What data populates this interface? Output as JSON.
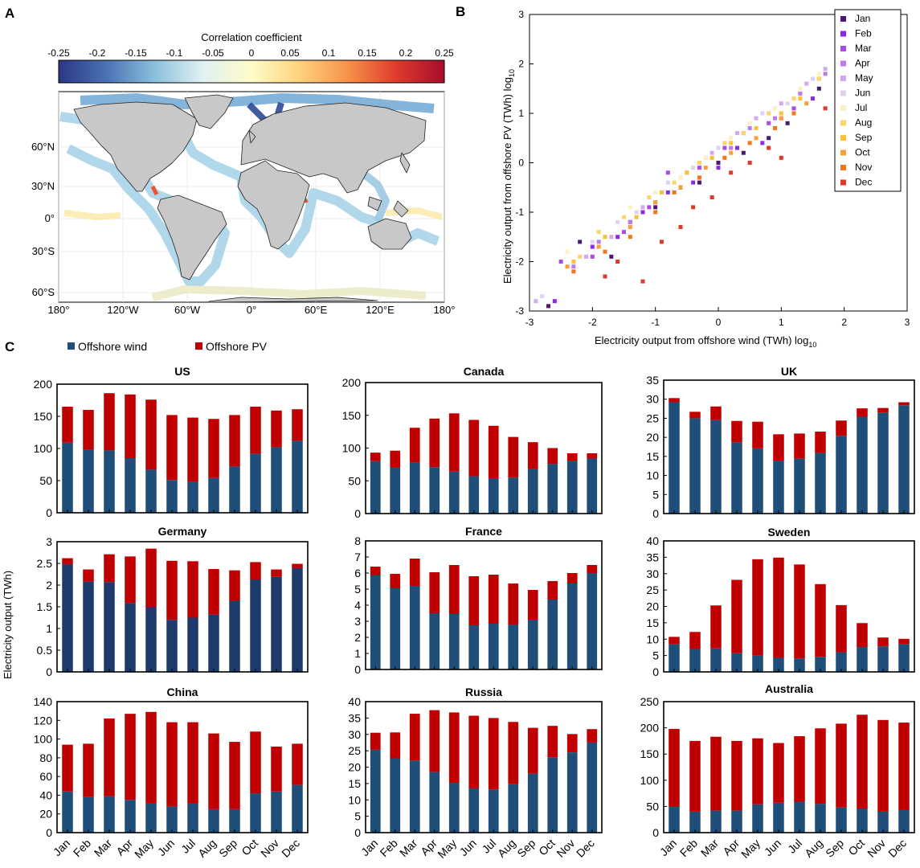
{
  "panels": {
    "a": {
      "letter": "A",
      "colorbar": {
        "title": "Correlation coefficient",
        "ticks": [
          "-0.25",
          "-0.2",
          "-0.15",
          "-0.1",
          "-0.05",
          "0",
          "0.05",
          "0.1",
          "0.15",
          "0.2",
          "0.25"
        ],
        "stops": [
          "#2b3686",
          "#4a73b3",
          "#8dc0dd",
          "#e1f1f3",
          "#fffcc8",
          "#fdd27e",
          "#f7924a",
          "#de3b2c",
          "#a50d2b"
        ]
      },
      "map": {
        "lon_labels": [
          "180°",
          "120°W",
          "60°W",
          "0°",
          "60°E",
          "120°E",
          "180°"
        ],
        "lat_labels": [
          "60°N",
          "30°N",
          "0°",
          "30°S",
          "60°S"
        ],
        "land_color": "#c8c8c8",
        "ocean_coast_color": "#a9d4e8"
      }
    },
    "b": {
      "letter": "B",
      "legend": [
        "Jan",
        "Feb",
        "Mar",
        "Apr",
        "May",
        "Jun",
        "Jul",
        "Aug",
        "Sep",
        "Oct",
        "Nov",
        "Dec"
      ],
      "month_colors": [
        "#4b1a6f",
        "#8a2be2",
        "#a64de6",
        "#c07ae8",
        "#d3a8ee",
        "#e2d2f2",
        "#fbefc4",
        "#fad66a",
        "#f8c13a",
        "#f7a03a",
        "#f3761c",
        "#dd3a2a"
      ],
      "xlabel_main": "Electricity output from offshore wind (TWh) log",
      "xlabel_sub": "10",
      "ylabel_main": "Electricity output from offshore PV (TWh) log",
      "ylabel_sub": "10",
      "ticks": [
        "-3",
        "-2",
        "-1",
        "0",
        "1",
        "2",
        "3"
      ]
    },
    "c": {
      "letter": "C",
      "legend": {
        "wind": "Offshore wind",
        "pv": "Offshore PV"
      },
      "colors": {
        "wind": "#1f4e79",
        "wind_dark": "#1f3b6b",
        "pv": "#c00000"
      },
      "ylabel": "Electricity output (TWh)",
      "months": [
        "Jan",
        "Feb",
        "Mar",
        "Apr",
        "May",
        "Jun",
        "Jul",
        "Aug",
        "Sep",
        "Oct",
        "Nov",
        "Dec"
      ]
    }
  },
  "chart_data": [
    {
      "type": "heatmap",
      "title": "Correlation coefficient",
      "x": "longitude",
      "y": "latitude",
      "xlim": [
        -180,
        180
      ],
      "ylim": [
        -65,
        90
      ],
      "clim": [
        -0.25,
        0.25
      ]
    },
    {
      "type": "scatter",
      "xlim": [
        -3,
        3
      ],
      "ylim": [
        -3,
        3
      ],
      "series": [
        {
          "name": "Jan",
          "x": [
            -2.7,
            -2.2,
            -1.7,
            -1.4,
            -1.0,
            -0.6,
            -0.3,
            0.0,
            0.4,
            0.8,
            1.1,
            1.6
          ],
          "y": [
            -2.9,
            -1.6,
            -1.9,
            -1.2,
            -0.9,
            -0.5,
            -0.4,
            0.0,
            0.2,
            0.5,
            0.8,
            1.5
          ]
        },
        {
          "name": "Feb",
          "x": [
            -2.6,
            -2.0,
            -1.6,
            -1.2,
            -0.8,
            -0.4,
            0.0,
            0.3,
            0.7,
            1.0,
            1.5
          ],
          "y": [
            -2.8,
            -1.7,
            -1.5,
            -1.0,
            -0.6,
            -0.4,
            -0.1,
            0.3,
            0.4,
            0.9,
            1.3
          ]
        },
        {
          "name": "Mar",
          "x": [
            -2.5,
            -2.0,
            -1.5,
            -1.1,
            -0.8,
            -0.3,
            0.1,
            0.4,
            0.8,
            1.2,
            1.6
          ],
          "y": [
            -2.0,
            -1.9,
            -1.4,
            -0.9,
            -0.2,
            -0.1,
            0.3,
            0.6,
            0.8,
            1.1,
            1.7
          ]
        },
        {
          "name": "Apr",
          "x": [
            -2.3,
            -1.9,
            -1.4,
            -1.0,
            -0.6,
            -0.2,
            0.2,
            0.5,
            0.9,
            1.3,
            1.7
          ],
          "y": [
            -2.1,
            -1.6,
            -1.2,
            -0.8,
            -0.3,
            0.1,
            0.3,
            0.7,
            0.9,
            1.4,
            1.8
          ]
        },
        {
          "name": "May",
          "x": [
            -2.9,
            -2.1,
            -1.7,
            -1.2,
            -0.9,
            -0.5,
            -0.1,
            0.3,
            0.6,
            1.0,
            1.4,
            1.7
          ],
          "y": [
            -2.8,
            -1.9,
            -1.5,
            -0.9,
            -0.6,
            -0.2,
            0.2,
            0.6,
            0.9,
            1.2,
            1.6,
            1.9
          ]
        },
        {
          "name": "Jun",
          "x": [
            -2.8,
            -2.0,
            -1.6,
            -1.3,
            -0.8,
            -0.4,
            0.0,
            0.4,
            0.7,
            1.1,
            1.5
          ],
          "y": [
            -2.7,
            -1.6,
            -1.2,
            -1.0,
            -0.4,
            -0.1,
            0.3,
            0.6,
            1.0,
            1.2,
            1.7
          ]
        },
        {
          "name": "Jul",
          "x": [
            -2.4,
            -1.8,
            -1.4,
            -1.0,
            -0.6,
            -0.2,
            0.2,
            0.5,
            0.9,
            1.3,
            1.6
          ],
          "y": [
            -1.8,
            -1.5,
            -0.9,
            -0.6,
            -0.3,
            0.1,
            0.5,
            0.8,
            1.1,
            1.5,
            1.8
          ]
        },
        {
          "name": "Aug",
          "x": [
            -2.2,
            -1.9,
            -1.5,
            -1.1,
            -0.7,
            -0.3,
            0.1,
            0.4,
            0.8,
            1.2,
            1.6
          ],
          "y": [
            -1.9,
            -1.4,
            -1.1,
            -0.7,
            -0.4,
            0.0,
            0.4,
            0.6,
            1.0,
            1.3,
            1.7
          ]
        },
        {
          "name": "Sep",
          "x": [
            -2.3,
            -1.8,
            -1.3,
            -0.9,
            -0.5,
            -0.1,
            0.2,
            0.6,
            1.0,
            1.3
          ],
          "y": [
            -2.0,
            -1.5,
            -1.1,
            -0.6,
            -0.2,
            0.1,
            0.4,
            0.7,
            1.0,
            1.3
          ]
        },
        {
          "name": "Oct",
          "x": [
            -2.4,
            -1.9,
            -1.4,
            -1.0,
            -0.6,
            -0.2,
            0.2,
            0.6,
            1.0,
            1.4
          ],
          "y": [
            -2.1,
            -1.7,
            -1.3,
            -0.8,
            -0.5,
            -0.1,
            0.2,
            0.5,
            0.9,
            1.2
          ]
        },
        {
          "name": "Nov",
          "x": [
            -2.3,
            -1.8,
            -1.4,
            -1.0,
            -0.7,
            -0.3,
            0.1,
            0.5,
            0.9,
            1.2
          ],
          "y": [
            -2.2,
            -1.8,
            -1.5,
            -1.0,
            -0.6,
            -0.3,
            0.1,
            0.4,
            0.7,
            1.0
          ]
        },
        {
          "name": "Dec",
          "x": [
            -1.8,
            -1.6,
            -1.2,
            -0.9,
            -0.6,
            -0.4,
            -0.1,
            0.2,
            0.5,
            0.8,
            1.0,
            1.7
          ],
          "y": [
            -2.3,
            -2.0,
            -2.4,
            -1.6,
            -1.3,
            -0.9,
            -0.7,
            -0.2,
            0.0,
            0.3,
            0.1,
            1.1
          ]
        }
      ]
    },
    {
      "type": "bar",
      "title": "US",
      "stacked": true,
      "categories": [
        "Jan",
        "Feb",
        "Mar",
        "Apr",
        "May",
        "Jun",
        "Jul",
        "Aug",
        "Sep",
        "Oct",
        "Nov",
        "Dec"
      ],
      "ylim": [
        0,
        200
      ],
      "yticks": [
        "0",
        "50",
        "100",
        "150",
        "200"
      ],
      "series": [
        {
          "name": "Offshore wind",
          "values": [
            109,
            98,
            97,
            85,
            67,
            51,
            48,
            54,
            72,
            92,
            102,
            112
          ]
        },
        {
          "name": "Offshore PV",
          "values": [
            56,
            62,
            89,
            99,
            109,
            101,
            100,
            92,
            80,
            73,
            57,
            49
          ]
        }
      ]
    },
    {
      "type": "bar",
      "title": "Canada",
      "stacked": true,
      "categories": [
        "Jan",
        "Feb",
        "Mar",
        "Apr",
        "May",
        "Jun",
        "Jul",
        "Aug",
        "Sep",
        "Oct",
        "Nov",
        "Dec"
      ],
      "ylim": [
        0,
        200
      ],
      "yticks": [
        "0",
        "50",
        "100",
        "150",
        "200"
      ],
      "series": [
        {
          "name": "Offshore wind",
          "values": [
            80,
            70,
            78,
            71,
            64,
            57,
            54,
            55,
            68,
            76,
            80,
            84
          ]
        },
        {
          "name": "Offshore PV",
          "values": [
            13,
            26,
            53,
            74,
            89,
            86,
            80,
            62,
            41,
            24,
            12,
            8
          ]
        }
      ]
    },
    {
      "type": "bar",
      "title": "UK",
      "stacked": true,
      "categories": [
        "Jan",
        "Feb",
        "Mar",
        "Apr",
        "May",
        "Jun",
        "Jul",
        "Aug",
        "Sep",
        "Oct",
        "Nov",
        "Dec"
      ],
      "ylim": [
        0,
        35
      ],
      "yticks": [
        "0",
        "5",
        "10",
        "15",
        "20",
        "25",
        "30",
        "35"
      ],
      "series": [
        {
          "name": "Offshore wind",
          "values": [
            29.2,
            25.0,
            24.5,
            18.7,
            17.1,
            13.9,
            14.4,
            15.9,
            20.4,
            25.4,
            26.5,
            28.4
          ]
        },
        {
          "name": "Offshore PV",
          "values": [
            1.1,
            1.7,
            3.6,
            5.6,
            7.0,
            6.9,
            6.6,
            5.6,
            4.0,
            2.2,
            1.2,
            0.8
          ]
        }
      ]
    },
    {
      "type": "bar",
      "title": "Germany",
      "stacked": true,
      "categories": [
        "Jan",
        "Feb",
        "Mar",
        "Apr",
        "May",
        "Jun",
        "Jul",
        "Aug",
        "Sep",
        "Oct",
        "Nov",
        "Dec"
      ],
      "ylim": [
        0,
        3
      ],
      "yticks": [
        "0",
        "0.5",
        "1",
        "1.5",
        "2",
        "2.5",
        "3"
      ],
      "series": [
        {
          "name": "Offshore wind",
          "values": [
            2.48,
            2.08,
            2.07,
            1.59,
            1.5,
            1.2,
            1.25,
            1.32,
            1.63,
            2.13,
            2.19,
            2.39
          ]
        },
        {
          "name": "Offshore PV",
          "values": [
            0.14,
            0.28,
            0.64,
            1.07,
            1.34,
            1.36,
            1.3,
            1.05,
            0.71,
            0.4,
            0.17,
            0.1
          ]
        }
      ]
    },
    {
      "type": "bar",
      "title": "France",
      "stacked": true,
      "categories": [
        "Jan",
        "Feb",
        "Mar",
        "Apr",
        "May",
        "Jun",
        "Jul",
        "Aug",
        "Sep",
        "Oct",
        "Nov",
        "Dec"
      ],
      "ylim": [
        0,
        8
      ],
      "yticks": [
        "0",
        "1",
        "2",
        "3",
        "4",
        "5",
        "6",
        "7",
        "8"
      ],
      "series": [
        {
          "name": "Offshore wind",
          "values": [
            5.85,
            5.05,
            5.2,
            3.5,
            3.45,
            2.75,
            2.85,
            2.8,
            3.1,
            4.35,
            5.35,
            6.0
          ]
        },
        {
          "name": "Offshore PV",
          "values": [
            0.55,
            0.9,
            1.7,
            2.55,
            3.05,
            3.05,
            3.05,
            2.55,
            1.85,
            1.15,
            0.65,
            0.5
          ]
        }
      ]
    },
    {
      "type": "bar",
      "title": "Sweden",
      "stacked": true,
      "categories": [
        "Jan",
        "Feb",
        "Mar",
        "Apr",
        "May",
        "Jun",
        "Jul",
        "Aug",
        "Sep",
        "Oct",
        "Nov",
        "Dec"
      ],
      "ylim": [
        0,
        40
      ],
      "yticks": [
        "0",
        "5",
        "10",
        "15",
        "20",
        "25",
        "30",
        "35",
        "40"
      ],
      "series": [
        {
          "name": "Offshore wind",
          "values": [
            8.5,
            7.0,
            7.2,
            5.7,
            5.0,
            4.3,
            4.1,
            4.6,
            6.0,
            7.6,
            7.8,
            8.5
          ]
        },
        {
          "name": "Offshore PV",
          "values": [
            2.2,
            5.2,
            13.1,
            22.4,
            29.4,
            30.6,
            28.7,
            22.2,
            14.4,
            7.3,
            2.7,
            1.6
          ]
        }
      ]
    },
    {
      "type": "bar",
      "title": "China",
      "stacked": true,
      "categories": [
        "Jan",
        "Feb",
        "Mar",
        "Apr",
        "May",
        "Jun",
        "Jul",
        "Aug",
        "Sep",
        "Oct",
        "Nov",
        "Dec"
      ],
      "ylim": [
        0,
        140
      ],
      "yticks": [
        "0",
        "20",
        "40",
        "60",
        "80",
        "100",
        "120",
        "140"
      ],
      "series": [
        {
          "name": "Offshore wind",
          "values": [
            44,
            38,
            39,
            35,
            31,
            28,
            31,
            25,
            25,
            42,
            44,
            51
          ]
        },
        {
          "name": "Offshore PV",
          "values": [
            50,
            57,
            83,
            92,
            98,
            90,
            87,
            81,
            72,
            66,
            48,
            44
          ]
        }
      ]
    },
    {
      "type": "bar",
      "title": "Russia",
      "stacked": true,
      "categories": [
        "Jan",
        "Feb",
        "Mar",
        "Apr",
        "May",
        "Jun",
        "Jul",
        "Aug",
        "Sep",
        "Oct",
        "Nov",
        "Dec"
      ],
      "ylim": [
        0,
        40
      ],
      "yticks": [
        "0",
        "5",
        "10",
        "15",
        "20",
        "25",
        "30",
        "35",
        "40"
      ],
      "series": [
        {
          "name": "Offshore wind",
          "values": [
            25.3,
            22.7,
            22.0,
            18.5,
            15.2,
            13.5,
            13.2,
            14.8,
            18.0,
            23.0,
            24.5,
            27.5
          ]
        },
        {
          "name": "Offshore PV",
          "values": [
            5.2,
            7.9,
            14.3,
            18.9,
            21.5,
            22.2,
            21.8,
            19.0,
            14.0,
            9.6,
            5.6,
            4.1
          ]
        }
      ]
    },
    {
      "type": "bar",
      "title": "Australia",
      "stacked": true,
      "categories": [
        "Jan",
        "Feb",
        "Mar",
        "Apr",
        "May",
        "Jun",
        "Jul",
        "Aug",
        "Sep",
        "Oct",
        "Nov",
        "Dec"
      ],
      "ylim": [
        0,
        250
      ],
      "yticks": [
        "0",
        "50",
        "100",
        "150",
        "200",
        "250"
      ],
      "series": [
        {
          "name": "Offshore wind",
          "values": [
            49,
            40,
            42,
            42,
            54,
            57,
            59,
            55,
            48,
            46,
            40,
            43
          ]
        },
        {
          "name": "Offshore PV",
          "values": [
            149,
            135,
            141,
            133,
            126,
            114,
            125,
            144,
            160,
            179,
            175,
            167
          ]
        }
      ]
    }
  ]
}
